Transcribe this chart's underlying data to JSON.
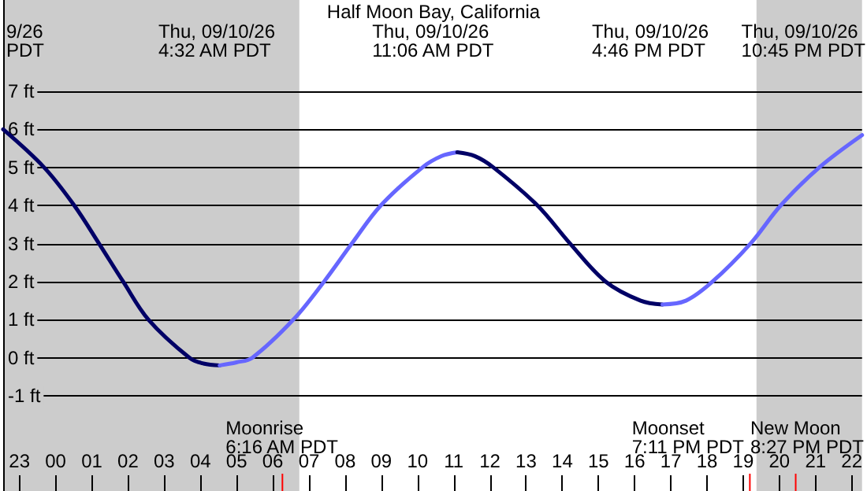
{
  "chart_data": {
    "type": "line",
    "title": "Half Moon Bay, California",
    "annotations": [
      "9/26\nPDT",
      "Thu, 09/10/26\n4:32 AM PDT",
      "Thu, 09/10/26\n11:06 AM PDT",
      "Thu, 09/10/26\n4:46 PM PDT",
      "Thu, 09/10/26\n10:45 PM PDT"
    ],
    "series": [
      {
        "color": "#000066",
        "x": [
          "--09-09T22:33",
          "--09-09T23:41",
          "--09-10T00:31",
          "--09-10T01:12",
          "--09-10T01:52",
          "--09-10T02:34",
          "--09-10T03:42",
          "--09-10T04:05",
          "--09-10T04:32"
        ],
        "values": [
          6.0,
          5,
          4,
          3,
          2,
          1,
          0,
          -0.15,
          -0.2
        ]
      },
      {
        "color": "#6666ff",
        "x": [
          "--09-10T04:32",
          "--09-10T05:00",
          "--09-10T05:26",
          "--09-10T06:34",
          "--09-10T07:25",
          "--09-10T08:11",
          "--09-10T08:59",
          "--09-10T10:08",
          "--09-10T10:40",
          "--09-10T11:06"
        ],
        "values": [
          -0.2,
          -0.12,
          0,
          1,
          2,
          3,
          4,
          5,
          5.3,
          5.4
        ]
      },
      {
        "color": "#000066",
        "x": [
          "--09-10T11:06",
          "--09-10T11:35",
          "--09-10T12:06",
          "--09-10T13:19",
          "--09-10T14:13",
          "--09-10T15:12",
          "--09-10T16:10",
          "--09-10T16:46"
        ],
        "values": [
          5.4,
          5.3,
          5,
          4,
          3,
          2,
          1.5,
          1.4
        ]
      },
      {
        "color": "#6666ff",
        "x": [
          "--09-10T16:46",
          "--09-10T17:25",
          "--09-10T18:09",
          "--09-10T19:12",
          "--09-10T20:02",
          "--09-10T21:06",
          "--09-10T22:17"
        ],
        "values": [
          1.4,
          1.5,
          2,
          3,
          4,
          5,
          5.85
        ]
      }
    ],
    "xlim": [
      "--09-09T22:33",
      "--09-10T22:17"
    ],
    "xticks": [
      {
        "value": "--09-09T23:00",
        "label": "23"
      },
      {
        "value": "--09-10T00:00",
        "label": "00"
      },
      {
        "value": "--09-10T01:00",
        "label": "01"
      },
      {
        "value": "--09-10T02:00",
        "label": "02"
      },
      {
        "value": "--09-10T03:00",
        "label": "03"
      },
      {
        "value": "--09-10T04:00",
        "label": "04"
      },
      {
        "value": "--09-10T05:00",
        "label": "05"
      },
      {
        "value": "--09-10T06:00",
        "label": "06"
      },
      {
        "value": "--09-10T07:00",
        "label": "07"
      },
      {
        "value": "--09-10T08:00",
        "label": "08"
      },
      {
        "value": "--09-10T09:00",
        "label": "09"
      },
      {
        "value": "--09-10T10:00",
        "label": "10"
      },
      {
        "value": "--09-10T11:00",
        "label": "11"
      },
      {
        "value": "--09-10T12:00",
        "label": "12"
      },
      {
        "value": "--09-10T13:00",
        "label": "13"
      },
      {
        "value": "--09-10T14:00",
        "label": "14"
      },
      {
        "value": "--09-10T15:00",
        "label": "15"
      },
      {
        "value": "--09-10T16:00",
        "label": "16"
      },
      {
        "value": "--09-10T17:00",
        "label": "17"
      },
      {
        "value": "--09-10T18:00",
        "label": "18"
      },
      {
        "value": "--09-10T19:00",
        "label": "19"
      },
      {
        "value": "--09-10T20:00",
        "label": "20"
      },
      {
        "value": "--09-10T21:00",
        "label": "21"
      },
      {
        "value": "--09-10T22:00",
        "label": "22"
      }
    ],
    "ylim": [
      -3.5,
      9.4
    ],
    "yticks": [
      {
        "value": -1,
        "label": "-1 ft"
      },
      {
        "value": 0,
        "label": "0 ft"
      },
      {
        "value": 1,
        "label": "1 ft"
      },
      {
        "value": 2,
        "label": "2 ft"
      },
      {
        "value": 3,
        "label": "3 ft"
      },
      {
        "value": 4,
        "label": "4 ft"
      },
      {
        "value": 5,
        "label": "5 ft"
      },
      {
        "value": 6,
        "label": "6 ft"
      },
      {
        "value": 7,
        "label": "7 ft"
      }
    ],
    "bands": [
      {
        "axis": "x",
        "from": "--09-09T22:33",
        "to": "--09-10T06:44",
        "color": "#cccccc"
      },
      {
        "axis": "x",
        "from": "--09-10T19:22",
        "to": "--09-10T22:17",
        "color": "#cccccc"
      }
    ],
    "ref_lines": [
      {
        "axis": "x",
        "value": "--09-10T06:16",
        "label": "Moonrise\n6:16 AM PDT",
        "color": "#ff0000"
      },
      {
        "axis": "x",
        "value": "--09-10T19:11",
        "label": "Moonset\n7:11 PM PDT",
        "color": "#ff0000"
      },
      {
        "axis": "x",
        "value": "--09-10T20:27",
        "label": "New Moon\n8:27 PM PDT",
        "color": "#ff0000"
      }
    ],
    "grid": "y",
    "marker": "none",
    "line_style": "solid"
  }
}
